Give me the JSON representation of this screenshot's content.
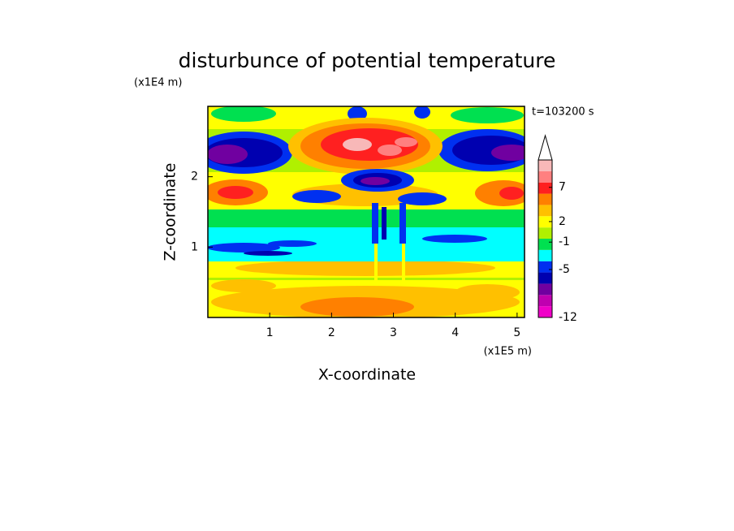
{
  "chart_data": {
    "type": "contour",
    "title": "disturbunce of potential temperature",
    "x_label": "X-coordinate",
    "y_label": "Z-coordinate",
    "x_unit": "(x1E5 m)",
    "y_unit": "(x1E4 m)",
    "annotation": "t=103200 s",
    "xlim": [
      0,
      5.12
    ],
    "xticks": [
      1,
      2,
      3,
      4,
      5
    ],
    "ylim": [
      0,
      3
    ],
    "yticks": [
      1,
      2
    ],
    "colorbar": {
      "lim": [
        -12,
        11
      ],
      "ticks": [
        7,
        2,
        -1,
        -5,
        -12
      ],
      "colors": [
        "#f000c8",
        "#c000b0",
        "#7000a0",
        "#0000b0",
        "#0030f0",
        "#00ffff",
        "#00e050",
        "#b0f000",
        "#ffff00",
        "#ffc000",
        "#ff8000",
        "#ff2020",
        "#ff8080",
        "#f8b8b8"
      ]
    }
  }
}
